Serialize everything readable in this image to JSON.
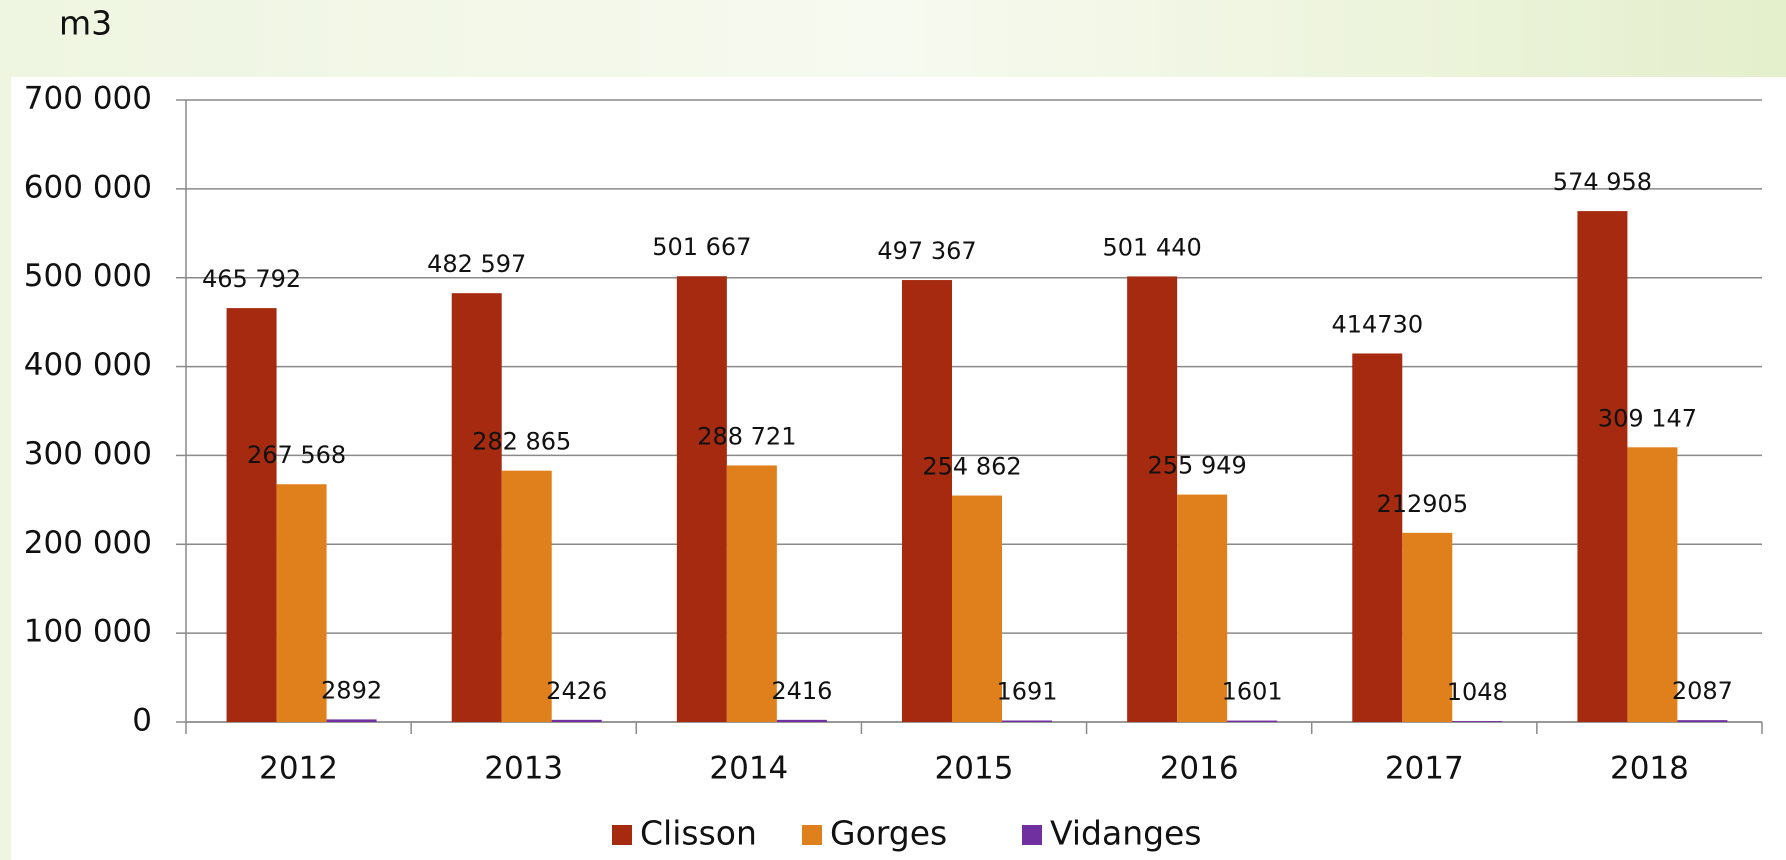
{
  "chart_data": {
    "type": "bar",
    "y_label": "m3",
    "categories": [
      "2012",
      "2013",
      "2014",
      "2015",
      "2016",
      "2017",
      "2018"
    ],
    "series": [
      {
        "name": "Clisson",
        "color": "#a52a0f",
        "values": [
          465792,
          482597,
          501667,
          497367,
          501440,
          414730,
          574958
        ],
        "value_labels": [
          "465 792",
          "482 597",
          "501 667",
          "497 367",
          "501 440",
          "414730",
          "574 958"
        ]
      },
      {
        "name": "Gorges",
        "color": "#e0801c",
        "values": [
          267568,
          282865,
          288721,
          254862,
          255949,
          212905,
          309147
        ],
        "value_labels": [
          "267 568",
          "282 865",
          "288 721",
          "254 862",
          "255 949",
          "212905",
          "309 147"
        ]
      },
      {
        "name": "Vidanges",
        "color": "#7030a0",
        "values": [
          2892,
          2426,
          2416,
          1691,
          1601,
          1048,
          2087
        ],
        "value_labels": [
          "2892",
          "2426",
          "2416",
          "1691",
          "1601",
          "1048",
          "2087"
        ]
      }
    ],
    "ylim": [
      0,
      700000
    ],
    "yticks": [
      0,
      {
        "value": 100000,
        "label": "100 000"
      },
      {
        "value": 200000,
        "label": "200 000"
      },
      {
        "value": 300000,
        "label": "300 000"
      },
      {
        "value": 400000,
        "label": "400 000"
      },
      {
        "value": 500000,
        "label": "500 000"
      },
      {
        "value": 600000,
        "label": "600 000"
      },
      {
        "value": 700000,
        "label": "700 000"
      }
    ],
    "grid": true,
    "legend": "bottom"
  }
}
